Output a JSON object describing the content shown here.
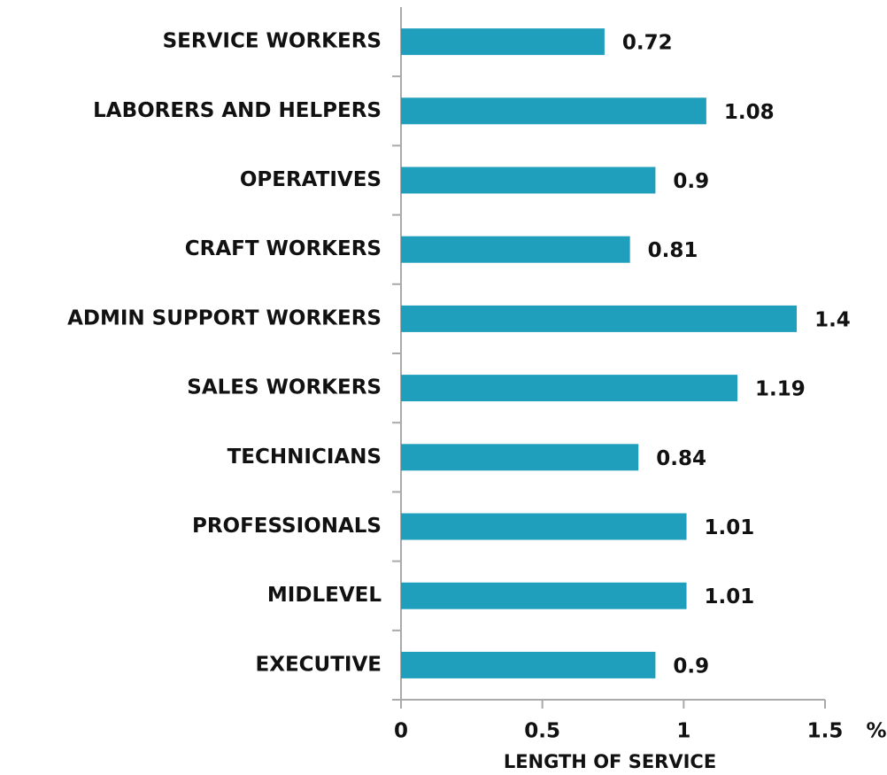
{
  "chart_data": {
    "type": "bar",
    "orientation": "horizontal",
    "categories": [
      "SERVICE WORKERS",
      "LABORERS AND HELPERS",
      "OPERATIVES",
      "CRAFT WORKERS",
      "ADMIN SUPPORT WORKERS",
      "SALES WORKERS",
      "TECHNICIANS",
      "PROFESSIONALS",
      "MIDLEVEL",
      "EXECUTIVE"
    ],
    "values": [
      0.72,
      1.08,
      0.9,
      0.81,
      1.4,
      1.19,
      0.84,
      1.01,
      1.01,
      0.9
    ],
    "color": "#1f9fbb",
    "xlim": [
      0,
      1.5
    ],
    "xticks": [
      0,
      0.5,
      1,
      1.5
    ],
    "x_label": "LENGTH OF SERVICE",
    "x_unit": "%",
    "grid": false
  }
}
